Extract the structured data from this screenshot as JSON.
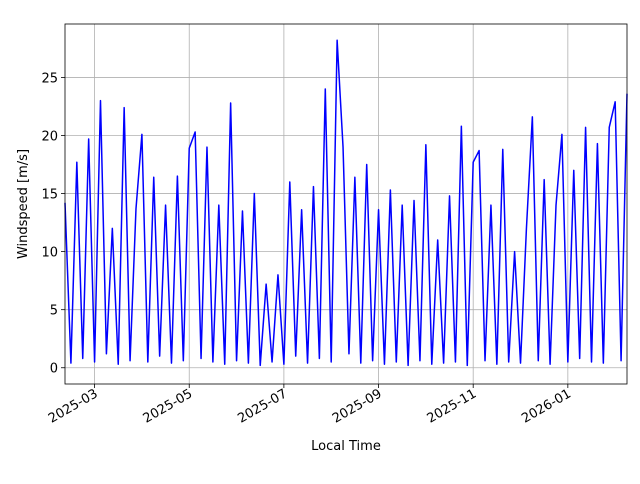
{
  "chart_data": {
    "type": "line",
    "x_label": "Local Time",
    "y_label": "Windspeed [m/s]",
    "categories": [
      null,
      null,
      null,
      null,
      null,
      "2025-03",
      null,
      null,
      null,
      null,
      null,
      null,
      null,
      null,
      null,
      null,
      null,
      null,
      null,
      null,
      null,
      "2025-05",
      null,
      null,
      null,
      null,
      null,
      null,
      null,
      null,
      null,
      null,
      null,
      null,
      null,
      null,
      null,
      "2025-07",
      null,
      null,
      null,
      null,
      null,
      null,
      null,
      null,
      null,
      null,
      null,
      null,
      null,
      null,
      null,
      "2025-09",
      null,
      null,
      null,
      null,
      null,
      null,
      null,
      null,
      null,
      null,
      null,
      null,
      null,
      null,
      null,
      "2025-11",
      null,
      null,
      null,
      null,
      null,
      null,
      null,
      null,
      null,
      null,
      null,
      null,
      null,
      null,
      null,
      "2026-01",
      null,
      null,
      null,
      null,
      null,
      null,
      null,
      null,
      null,
      null
    ],
    "series": [
      {
        "name": "Windspeed",
        "color": "#0000ff",
        "values": [
          14.2,
          0.4,
          17.7,
          0.8,
          19.7,
          0.5,
          23.0,
          1.2,
          12.0,
          0.3,
          22.4,
          0.6,
          13.7,
          20.1,
          0.5,
          16.4,
          1.0,
          14.0,
          0.4,
          16.5,
          0.6,
          18.9,
          20.3,
          0.8,
          19.0,
          0.5,
          14.0,
          0.3,
          22.8,
          0.6,
          13.5,
          0.4,
          15.0,
          0.2,
          7.2,
          0.5,
          8.0,
          0.3,
          16.0,
          1.0,
          13.6,
          0.4,
          15.6,
          0.8,
          24.0,
          0.5,
          28.2,
          19.0,
          1.2,
          16.4,
          0.4,
          17.5,
          0.6,
          13.6,
          0.3,
          15.3,
          0.5,
          14.0,
          0.2,
          14.4,
          0.6,
          19.2,
          0.3,
          11.0,
          0.4,
          14.8,
          0.5,
          20.8,
          0.2,
          17.7,
          18.7,
          0.6,
          14.0,
          0.3,
          18.8,
          0.5,
          10.0,
          0.4,
          12.0,
          21.6,
          0.6,
          16.2,
          0.3,
          14.0,
          20.1,
          0.5,
          17.0,
          0.8,
          20.7,
          0.5,
          19.3,
          0.4,
          20.7,
          22.9,
          0.6,
          23.6
        ]
      }
    ],
    "ylim": [
      -1.4,
      29.6
    ],
    "yticks": [
      0,
      5,
      10,
      15,
      20,
      25
    ],
    "grid": true
  }
}
